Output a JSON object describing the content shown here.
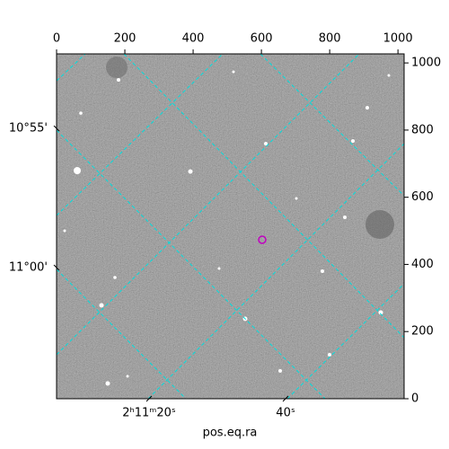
{
  "chart_data": {
    "type": "image",
    "xlabel": "pos.eq.ra",
    "xlim": [
      0,
      1018
    ],
    "xticks": [
      0,
      200,
      400,
      600,
      800,
      1000
    ],
    "ylim": [
      0,
      1027
    ],
    "yticks": [
      0,
      200,
      400,
      600,
      800,
      1000
    ],
    "world_xticks": [
      "2ʰ11ᵐ20ˢ",
      "40ˢ"
    ],
    "world_yticks": [
      "10°55'",
      "11°00'"
    ],
    "grid_color": "#00dede",
    "marker_color": "#c000c0"
  }
}
